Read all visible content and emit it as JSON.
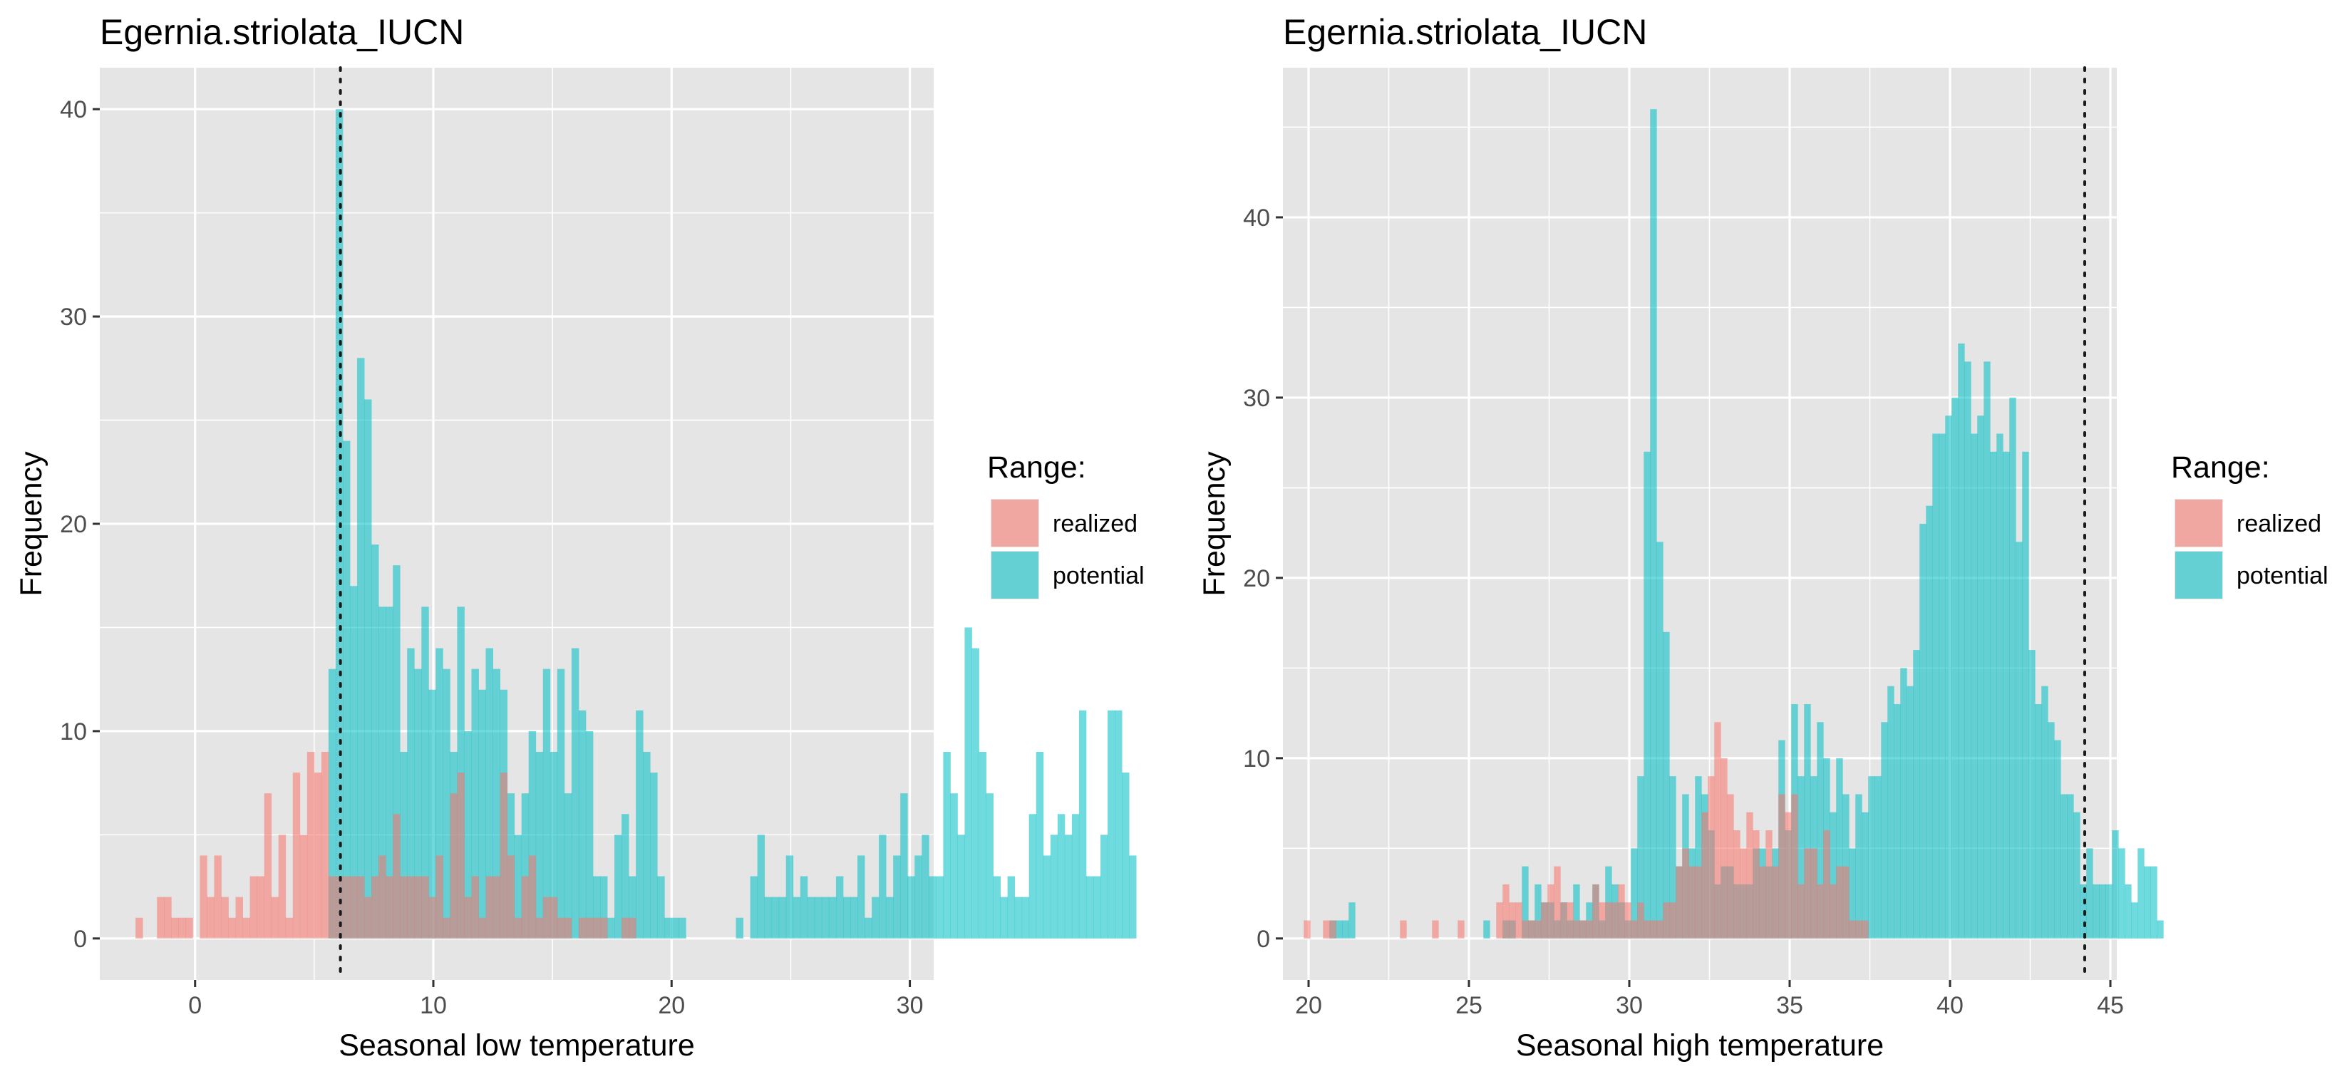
{
  "colors": {
    "panel_bg": "#e5e5e5",
    "grid": "#ffffff",
    "realized": "#f8766d",
    "potential": "#00bfc4",
    "vline": "#1a1a1a"
  },
  "legend": {
    "title": "Range:",
    "items": [
      {
        "key": "realized",
        "label": "realized"
      },
      {
        "key": "potential",
        "label": "potential"
      }
    ]
  },
  "chart_data": [
    {
      "type": "histogram",
      "title": "Egernia.striolata_IUCN",
      "xlabel": "Seasonal low temperature",
      "ylabel": "Frequency",
      "xlim": [
        -4,
        31
      ],
      "ylim": [
        -2,
        42
      ],
      "xticks": [
        0,
        10,
        20,
        30
      ],
      "yticks": [
        0,
        10,
        20,
        30,
        40
      ],
      "vline": 6.1,
      "bin_start": -2.5,
      "bin_width": 0.3,
      "series": [
        {
          "key": "realized",
          "name": "realized",
          "values": [
            1,
            0,
            0,
            2,
            2,
            1,
            1,
            1,
            0,
            4,
            2,
            4,
            2,
            1,
            2,
            1,
            3,
            3,
            7,
            2,
            5,
            1,
            8,
            5,
            9,
            8,
            9,
            3,
            3,
            3,
            3,
            3,
            2,
            3,
            4,
            3,
            6,
            3,
            3,
            3,
            3,
            2,
            4,
            1,
            7,
            8,
            2,
            3,
            1,
            3,
            3,
            8,
            4,
            1,
            3,
            4,
            1,
            2,
            2,
            1,
            1,
            0,
            1,
            1,
            1,
            1,
            0,
            0,
            1,
            1,
            0,
            0,
            0,
            0,
            0,
            0,
            0,
            0,
            0,
            0,
            0,
            0,
            0,
            0,
            0,
            0,
            0,
            0,
            0,
            0,
            0,
            0,
            0,
            0,
            0,
            0,
            0,
            0,
            0,
            0,
            0,
            0,
            0,
            0,
            0,
            0,
            0,
            0,
            0,
            0,
            0,
            0,
            0,
            0,
            0,
            0,
            0,
            0,
            0,
            0,
            0,
            0,
            0,
            0,
            0,
            0,
            0,
            0,
            0,
            0,
            0,
            0,
            0,
            0,
            0,
            0,
            0
          ]
        },
        {
          "key": "potential",
          "name": "potential",
          "values": [
            0,
            0,
            0,
            0,
            0,
            0,
            0,
            0,
            0,
            0,
            0,
            0,
            0,
            0,
            0,
            0,
            0,
            0,
            0,
            0,
            0,
            0,
            0,
            0,
            0,
            0,
            0,
            13,
            40,
            24,
            17,
            28,
            26,
            19,
            16,
            16,
            18,
            9,
            14,
            13,
            16,
            12,
            14,
            13,
            9,
            16,
            10,
            13,
            12,
            14,
            13,
            12,
            7,
            5,
            7,
            10,
            9,
            13,
            9,
            13,
            7,
            14,
            11,
            10,
            3,
            3,
            1,
            5,
            6,
            3,
            11,
            9,
            8,
            3,
            1,
            1,
            1,
            0,
            0,
            0,
            0,
            0,
            0,
            0,
            1,
            0,
            3,
            5,
            2,
            2,
            2,
            4,
            2,
            3,
            2,
            2,
            2,
            2,
            3,
            2,
            2,
            4,
            1,
            2,
            5,
            2,
            4,
            7,
            3,
            4,
            5,
            3,
            3,
            9,
            7,
            5,
            15,
            14,
            9,
            7,
            3,
            2,
            3,
            2,
            2,
            6,
            9,
            4,
            5,
            6,
            5,
            6,
            11,
            3,
            3,
            5,
            11,
            11,
            8,
            4
          ]
        }
      ]
    },
    {
      "type": "histogram",
      "title": "Egernia.striolata_IUCN",
      "xlabel": "Seasonal high temperature",
      "ylabel": "Frequency",
      "xlim": [
        19.2,
        45.2
      ],
      "ylim": [
        -2.3,
        48.3
      ],
      "xticks": [
        20,
        25,
        30,
        35,
        40,
        45
      ],
      "yticks": [
        0,
        10,
        20,
        30,
        40
      ],
      "vline": 44.2,
      "bin_start": 19.85,
      "bin_width": 0.2,
      "series": [
        {
          "key": "realized",
          "name": "realized",
          "values": [
            1,
            0,
            0,
            1,
            1,
            0,
            0,
            0,
            0,
            0,
            0,
            0,
            0,
            0,
            0,
            1,
            0,
            0,
            0,
            0,
            1,
            0,
            0,
            0,
            1,
            0,
            0,
            0,
            0,
            0,
            2,
            3,
            2,
            2,
            1,
            1,
            1,
            2,
            3,
            4,
            2,
            2,
            1,
            1,
            1,
            3,
            2,
            2,
            2,
            3,
            2,
            1,
            2,
            1,
            1,
            1,
            2,
            2,
            4,
            5,
            4,
            4,
            7,
            9,
            12,
            10,
            8,
            6,
            5,
            7,
            6,
            4,
            6,
            4,
            8,
            7,
            8,
            3,
            5,
            5,
            3,
            6,
            3,
            4,
            4,
            1,
            1,
            1,
            0,
            0,
            0,
            0,
            0,
            0,
            0,
            0,
            0,
            0,
            0,
            0,
            0,
            0,
            0,
            0,
            0,
            0,
            0,
            0,
            0,
            0,
            0,
            0,
            0,
            0,
            0,
            0,
            0,
            0,
            0,
            0,
            0,
            0,
            0,
            0,
            0,
            0,
            0,
            0,
            0,
            0,
            0,
            0,
            0,
            0,
            0,
            0,
            0,
            0
          ]
        },
        {
          "key": "potential",
          "name": "potential",
          "values": [
            0,
            0,
            0,
            0,
            1,
            1,
            1,
            2,
            0,
            0,
            0,
            0,
            0,
            0,
            0,
            0,
            0,
            0,
            0,
            0,
            0,
            0,
            0,
            0,
            0,
            0,
            0,
            0,
            1,
            0,
            0,
            1,
            1,
            0,
            4,
            1,
            3,
            2,
            2,
            1,
            2,
            1,
            3,
            1,
            2,
            3,
            1,
            4,
            3,
            2,
            1,
            5,
            9,
            27,
            46,
            22,
            17,
            9,
            4,
            8,
            5,
            9,
            8,
            6,
            3,
            4,
            4,
            3,
            3,
            3,
            5,
            5,
            4,
            5,
            11,
            6,
            13,
            9,
            13,
            9,
            12,
            10,
            7,
            10,
            8,
            5,
            8,
            7,
            9,
            9,
            12,
            14,
            13,
            15,
            14,
            16,
            23,
            24,
            28,
            28,
            29,
            30,
            33,
            32,
            28,
            29,
            32,
            27,
            28,
            27,
            30,
            22,
            27,
            16,
            13,
            14,
            12,
            11,
            8,
            8,
            7,
            3,
            5,
            3,
            3,
            3,
            6,
            5,
            3,
            2,
            5,
            4,
            4,
            1,
            0,
            0,
            0,
            0
          ]
        }
      ]
    }
  ]
}
